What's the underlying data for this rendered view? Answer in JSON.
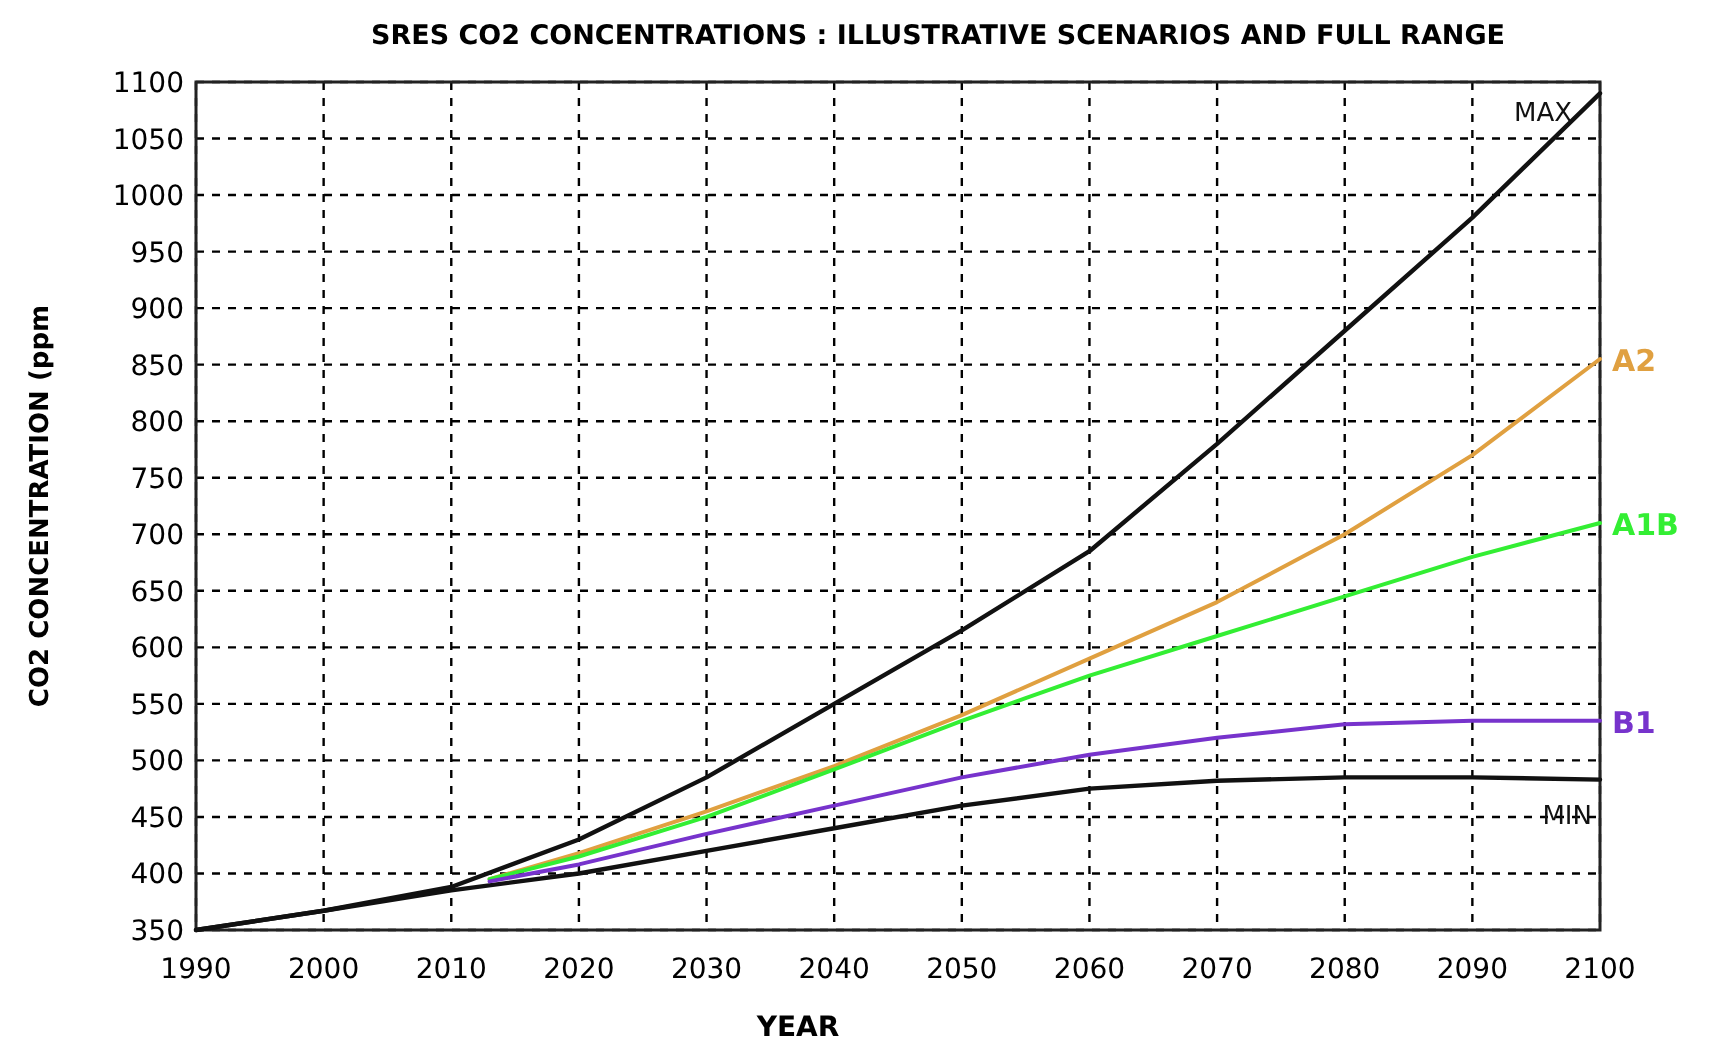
{
  "chart_data": {
    "type": "line",
    "title": "SRES CO2 CONCENTRATIONS : ILLUSTRATIVE SCENARIOS AND FULL RANGE",
    "xlabel": "YEAR",
    "ylabel": "CO2 CONCENTRATION  (ppm",
    "xlim": [
      1990,
      2100
    ],
    "ylim": [
      350,
      1100
    ],
    "xticks": [
      1990,
      2000,
      2010,
      2020,
      2030,
      2040,
      2050,
      2060,
      2070,
      2080,
      2090,
      2100
    ],
    "yticks": [
      350,
      400,
      450,
      500,
      550,
      600,
      650,
      700,
      750,
      800,
      850,
      900,
      950,
      1000,
      1050,
      1100
    ],
    "grid": true,
    "marker": "none",
    "line_style": "solid",
    "series": [
      {
        "name": "MAX",
        "color": "#111111",
        "x": [
          1990,
          2000,
          2010,
          2020,
          2030,
          2040,
          2050,
          2060,
          2070,
          2080,
          2090,
          2100
        ],
        "values": [
          350,
          367,
          388,
          430,
          485,
          550,
          615,
          685,
          780,
          880,
          980,
          1090
        ]
      },
      {
        "name": "MIN",
        "color": "#111111",
        "x": [
          1990,
          2000,
          2010,
          2020,
          2030,
          2040,
          2050,
          2060,
          2070,
          2080,
          2090,
          2100
        ],
        "values": [
          350,
          367,
          385,
          400,
          420,
          440,
          460,
          475,
          482,
          485,
          485,
          483
        ]
      },
      {
        "name": "A2",
        "color": "#e0a040",
        "x": [
          2013,
          2020,
          2030,
          2040,
          2050,
          2060,
          2070,
          2080,
          2090,
          2100
        ],
        "values": [
          395,
          418,
          455,
          495,
          540,
          590,
          640,
          700,
          770,
          855
        ]
      },
      {
        "name": "A1B",
        "color": "#33ee33",
        "x": [
          2013,
          2020,
          2030,
          2040,
          2050,
          2055,
          2060,
          2070,
          2080,
          2090,
          2100
        ],
        "values": [
          395,
          415,
          450,
          492,
          535,
          555,
          575,
          610,
          645,
          680,
          710
        ]
      },
      {
        "name": "B1",
        "color": "#7733cc",
        "x": [
          2013,
          2020,
          2030,
          2040,
          2050,
          2060,
          2070,
          2080,
          2090,
          2100
        ],
        "values": [
          393,
          408,
          435,
          460,
          485,
          505,
          520,
          532,
          535,
          535
        ]
      }
    ]
  }
}
